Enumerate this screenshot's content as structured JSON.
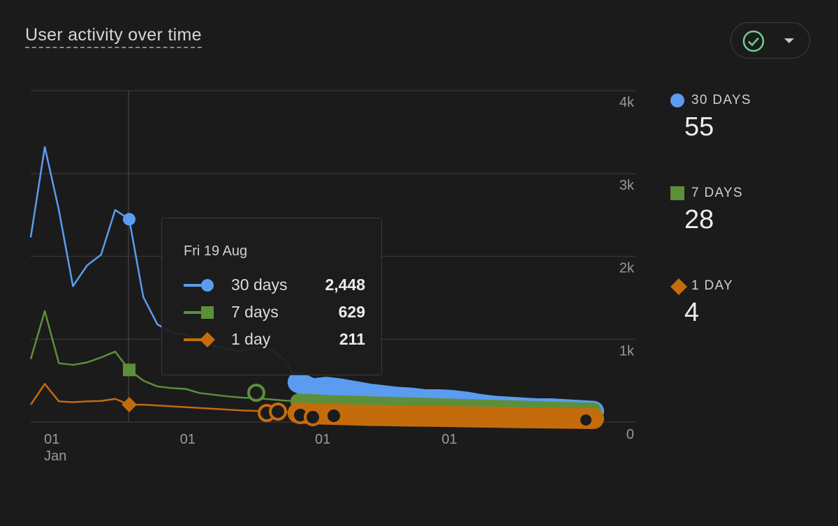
{
  "header": {
    "title": "User activity over time",
    "filter_icon": "check-circle-icon",
    "dropdown_icon": "caret-down-icon"
  },
  "tooltip": {
    "date": "Fri 19 Aug",
    "rows": [
      {
        "label": "30 days",
        "value": "2,448"
      },
      {
        "label": "7 days",
        "value": "629"
      },
      {
        "label": "1 day",
        "value": "211"
      }
    ]
  },
  "legend": [
    {
      "label": "30 DAYS",
      "value": "55",
      "marker": "circle",
      "color": "#5b9cf0"
    },
    {
      "label": "7 DAYS",
      "value": "28",
      "marker": "square",
      "color": "#5d8f3a"
    },
    {
      "label": "1 DAY",
      "value": "4",
      "marker": "diamond",
      "color": "#c46c0c"
    }
  ],
  "chart_data": {
    "type": "line",
    "ylim": [
      0,
      4000
    ],
    "y_ticks": [
      "0",
      "1k",
      "2k",
      "3k",
      "4k"
    ],
    "y_tick_values": [
      0,
      1000,
      2000,
      3000,
      4000
    ],
    "y_axis_position": "right",
    "grid": true,
    "x_ticks": [
      {
        "at": 0.95,
        "label": "01",
        "sublabel": "Jan"
      },
      {
        "at": 10.6,
        "label": "01",
        "sublabel": ""
      },
      {
        "at": 20.2,
        "label": "01",
        "sublabel": ""
      },
      {
        "at": 29.2,
        "label": "01",
        "sublabel": ""
      }
    ],
    "hover_index": 7,
    "series": [
      {
        "name": "30 days",
        "color": "#5b9cf0",
        "marker": "circle",
        "values": [
          2230,
          3320,
          2560,
          1640,
          1890,
          2020,
          2560,
          2448,
          1510,
          1180,
          1080,
          1050,
          980,
          920,
          880,
          850,
          900,
          880,
          760,
          480,
          400,
          420,
          400,
          370,
          340,
          320,
          300,
          290,
          270,
          270,
          260,
          240,
          210,
          190,
          180,
          170,
          160,
          160,
          150,
          140,
          130
        ]
      },
      {
        "name": "7 days",
        "color": "#5d8f3a",
        "marker": "square",
        "values": [
          760,
          1340,
          710,
          690,
          720,
          780,
          850,
          629,
          500,
          430,
          410,
          400,
          350,
          330,
          310,
          295,
          290,
          275,
          260,
          250,
          245,
          235,
          230,
          225,
          220,
          215,
          210,
          205,
          200,
          195,
          190,
          185,
          180,
          175,
          170,
          165,
          160,
          155,
          150,
          145,
          140
        ]
      },
      {
        "name": "1 day",
        "color": "#c46c0c",
        "marker": "diamond",
        "values": [
          210,
          460,
          250,
          240,
          250,
          255,
          280,
          211,
          210,
          200,
          190,
          180,
          170,
          160,
          150,
          140,
          135,
          130,
          120,
          110,
          100,
          95,
          90,
          85,
          80,
          78,
          75,
          72,
          70,
          68,
          65,
          62,
          60,
          58,
          55,
          52,
          50,
          48,
          46,
          44,
          42
        ]
      }
    ]
  }
}
